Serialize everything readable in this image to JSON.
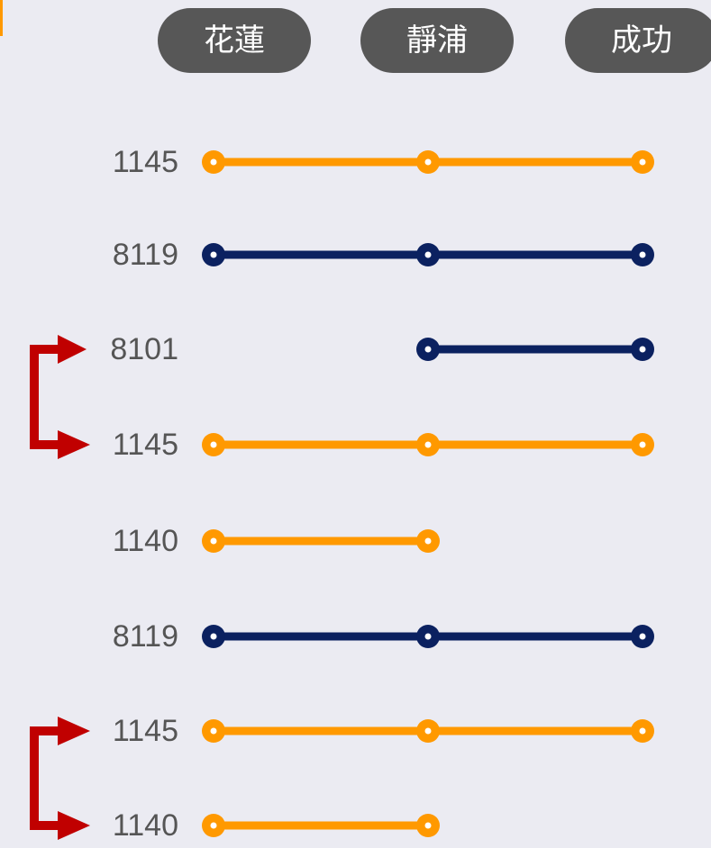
{
  "stations": [
    "花蓮",
    "靜浦",
    "成功"
  ],
  "routes": [
    {
      "label": "1145",
      "color": "#ff9900",
      "stops": [
        0,
        1,
        2
      ]
    },
    {
      "label": "8119",
      "color": "#0b2160",
      "stops": [
        0,
        1,
        2
      ]
    },
    {
      "label": "8101",
      "color": "#0b2160",
      "stops": [
        1,
        2
      ]
    },
    {
      "label": "1145",
      "color": "#ff9900",
      "stops": [
        0,
        1,
        2
      ]
    },
    {
      "label": "1140",
      "color": "#ff9900",
      "stops": [
        0,
        1
      ]
    },
    {
      "label": "8119",
      "color": "#0b2160",
      "stops": [
        0,
        1,
        2
      ]
    },
    {
      "label": "1145",
      "color": "#ff9900",
      "stops": [
        0,
        1,
        2
      ]
    },
    {
      "label": "1140",
      "color": "#ff9900",
      "stops": [
        0,
        1
      ]
    }
  ]
}
